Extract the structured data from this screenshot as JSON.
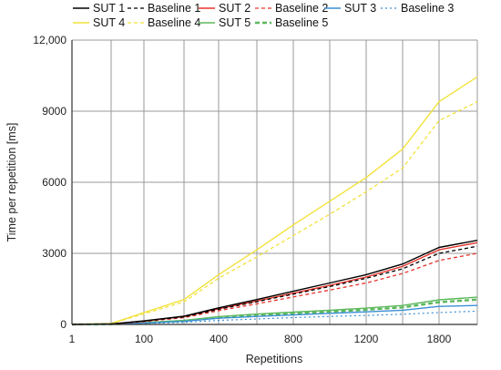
{
  "chart_data": {
    "type": "line",
    "xlabel": "Repetitions",
    "ylabel": "Time per repetition [ms]",
    "x": [
      1,
      50,
      100,
      200,
      400,
      600,
      800,
      1000,
      1200,
      1500,
      1800,
      2000
    ],
    "x_ticks": [
      1,
      100,
      400,
      800,
      1200,
      1800
    ],
    "x_tick_labels": [
      "1",
      "100",
      "400",
      "800",
      "1200",
      "1800"
    ],
    "y_ticks": [
      0,
      3000,
      6000,
      9000,
      12000
    ],
    "y_tick_labels": [
      "0",
      "3000",
      "6000",
      "9000",
      "12,000"
    ],
    "ylim": [
      0,
      12000
    ],
    "grid": "vertical-and-horizontal",
    "legend_placement": "top",
    "series": [
      {
        "name": "SUT 1",
        "color": "#000000",
        "dash": "solid",
        "values": [
          0,
          20,
          150,
          350,
          700,
          1050,
          1400,
          1750,
          2100,
          2550,
          3250,
          3550
        ]
      },
      {
        "name": "Baseline 1",
        "color": "#000000",
        "dash": "dashed",
        "values": [
          0,
          18,
          140,
          320,
          640,
          960,
          1280,
          1600,
          1950,
          2350,
          3000,
          3300
        ]
      },
      {
        "name": "SUT 2",
        "color": "#e8342c",
        "dash": "solid",
        "values": [
          0,
          18,
          140,
          330,
          660,
          990,
          1320,
          1650,
          2000,
          2450,
          3150,
          3450
        ]
      },
      {
        "name": "Baseline 2",
        "color": "#e8342c",
        "dash": "dashed",
        "values": [
          0,
          15,
          120,
          290,
          580,
          870,
          1160,
          1450,
          1750,
          2150,
          2700,
          3000
        ]
      },
      {
        "name": "SUT 3",
        "color": "#3b8fd6",
        "dash": "solid",
        "values": [
          0,
          8,
          60,
          130,
          260,
          340,
          400,
          470,
          530,
          600,
          760,
          800
        ]
      },
      {
        "name": "Baseline 3",
        "color": "#3b8fd6",
        "dash": "dotted",
        "values": [
          0,
          6,
          40,
          90,
          170,
          230,
          290,
          340,
          380,
          430,
          500,
          560
        ]
      },
      {
        "name": "SUT 4",
        "color": "#f2e23a",
        "dash": "solid",
        "values": [
          0,
          40,
          500,
          1050,
          2100,
          3150,
          4200,
          5200,
          6200,
          7400,
          9400,
          10450
        ]
      },
      {
        "name": "Baseline 4",
        "color": "#f2e23a",
        "dash": "dashed",
        "values": [
          0,
          35,
          450,
          950,
          1950,
          2850,
          3750,
          4650,
          5600,
          6600,
          8600,
          9400
        ]
      },
      {
        "name": "SUT 5",
        "color": "#5cb85c",
        "dash": "solid",
        "values": [
          0,
          10,
          75,
          170,
          330,
          440,
          520,
          600,
          690,
          800,
          1040,
          1150
        ]
      },
      {
        "name": "Baseline 5",
        "color": "#5cb85c",
        "dash": "bold-dashed",
        "values": [
          0,
          9,
          65,
          150,
          290,
          390,
          460,
          540,
          620,
          720,
          940,
          1050
        ]
      }
    ]
  }
}
